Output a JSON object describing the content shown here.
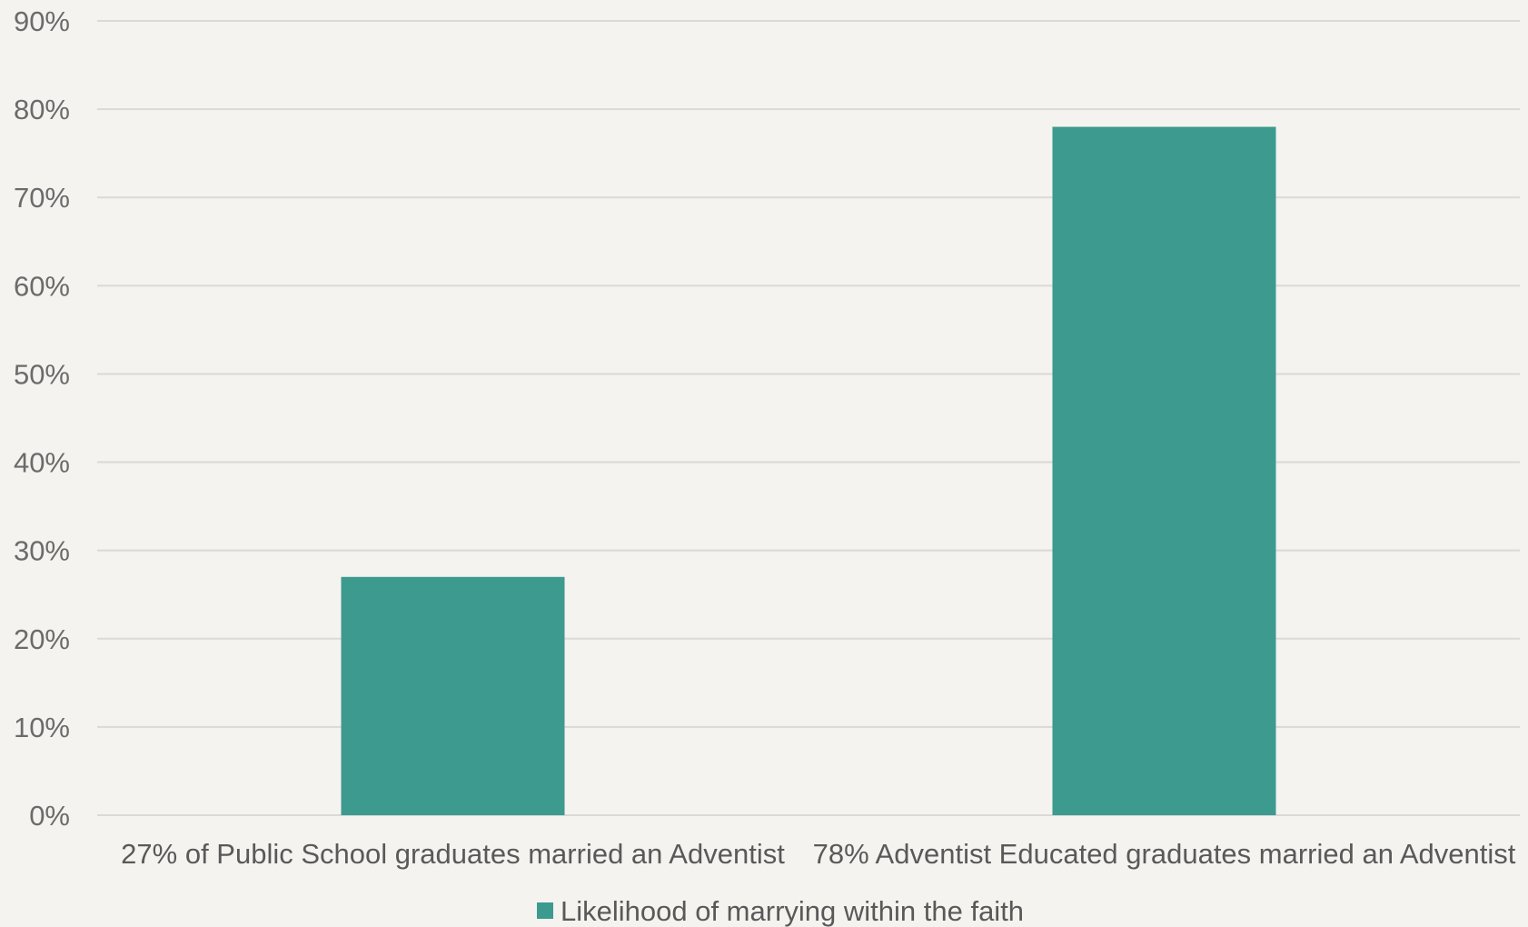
{
  "chart_data": {
    "type": "bar",
    "categories": [
      "27% of Public School graduates married an Adventist",
      "78% Adventist Educated graduates married an Adventist"
    ],
    "series": [
      {
        "name": "Likelihood of marrying within the faith",
        "values": [
          27,
          78
        ],
        "color": "#3d9a8f"
      }
    ],
    "ylim": [
      0,
      90
    ],
    "ytick_step": 10,
    "ytick_format": "{v}%",
    "grid": true,
    "legend_position": "bottom",
    "title": "",
    "xlabel": "",
    "ylabel": ""
  },
  "colors": {
    "background": "#f4f3ef",
    "grid": "#d9d9d9",
    "bar": "#3d9a8f"
  }
}
